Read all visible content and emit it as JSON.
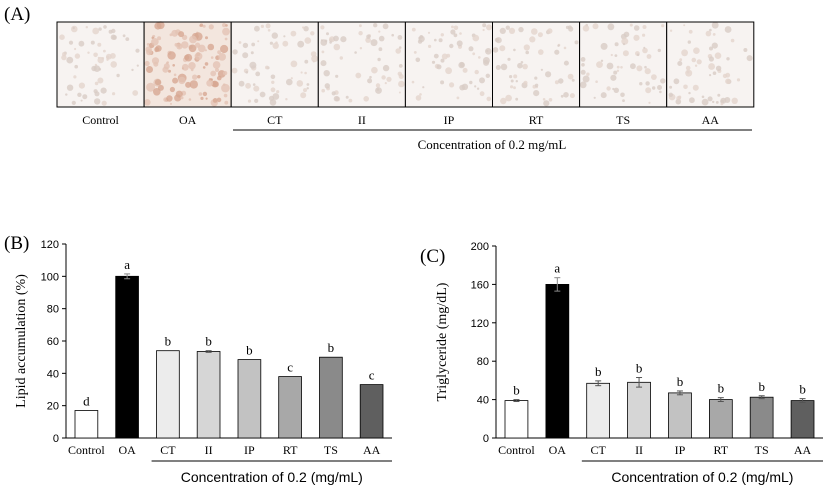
{
  "panel_a": {
    "label": "(A)",
    "images": [
      "Control",
      "OA",
      "CT",
      "II",
      "IP",
      "RT",
      "TS",
      "AA"
    ],
    "bracket_text": "Concentration of 0.2 mg/mL"
  },
  "chart_data": [
    {
      "panel": "(B)",
      "type": "bar",
      "categories": [
        "Control",
        "OA",
        "CT",
        "II",
        "IP",
        "RT",
        "TS",
        "AA"
      ],
      "values": [
        17,
        100,
        54,
        53.5,
        48.5,
        38,
        50,
        33
      ],
      "errors": [
        0,
        1.5,
        0,
        0.5,
        0,
        0,
        0,
        0
      ],
      "letters": [
        "d",
        "a",
        "b",
        "b",
        "b",
        "c",
        "b",
        "c"
      ],
      "colors": [
        "#ffffff",
        "#000000",
        "#ececec",
        "#d6d6d6",
        "#c2c2c2",
        "#a8a8a8",
        "#8a8a8a",
        "#5f5f5f"
      ],
      "ylabel": "Lipid accumulation (%)",
      "xlabel": "Concentration of 0.2 (mg/mL)",
      "ylim": [
        0,
        120
      ],
      "yticks": [
        0,
        20,
        40,
        60,
        80,
        100,
        120
      ],
      "grid": false,
      "legend": "none"
    },
    {
      "panel": "(C)",
      "type": "bar",
      "categories": [
        "Control",
        "OA",
        "CT",
        "II",
        "IP",
        "RT",
        "TS",
        "AA"
      ],
      "values": [
        39,
        160,
        57,
        58,
        47,
        40,
        42.5,
        39
      ],
      "errors": [
        1,
        7,
        2.5,
        5,
        2,
        2,
        1.5,
        2
      ],
      "letters": [
        "b",
        "a",
        "b",
        "b",
        "b",
        "b",
        "b",
        "b"
      ],
      "colors": [
        "#ffffff",
        "#000000",
        "#ececec",
        "#d6d6d6",
        "#c2c2c2",
        "#a8a8a8",
        "#8a8a8a",
        "#5f5f5f"
      ],
      "ylabel": "Triglyceride (mg/dL)",
      "xlabel": "Concentration of 0.2 (mg/mL)",
      "ylim": [
        0,
        200
      ],
      "yticks": [
        0,
        40,
        80,
        120,
        160,
        200
      ],
      "grid": false,
      "legend": "none"
    }
  ]
}
